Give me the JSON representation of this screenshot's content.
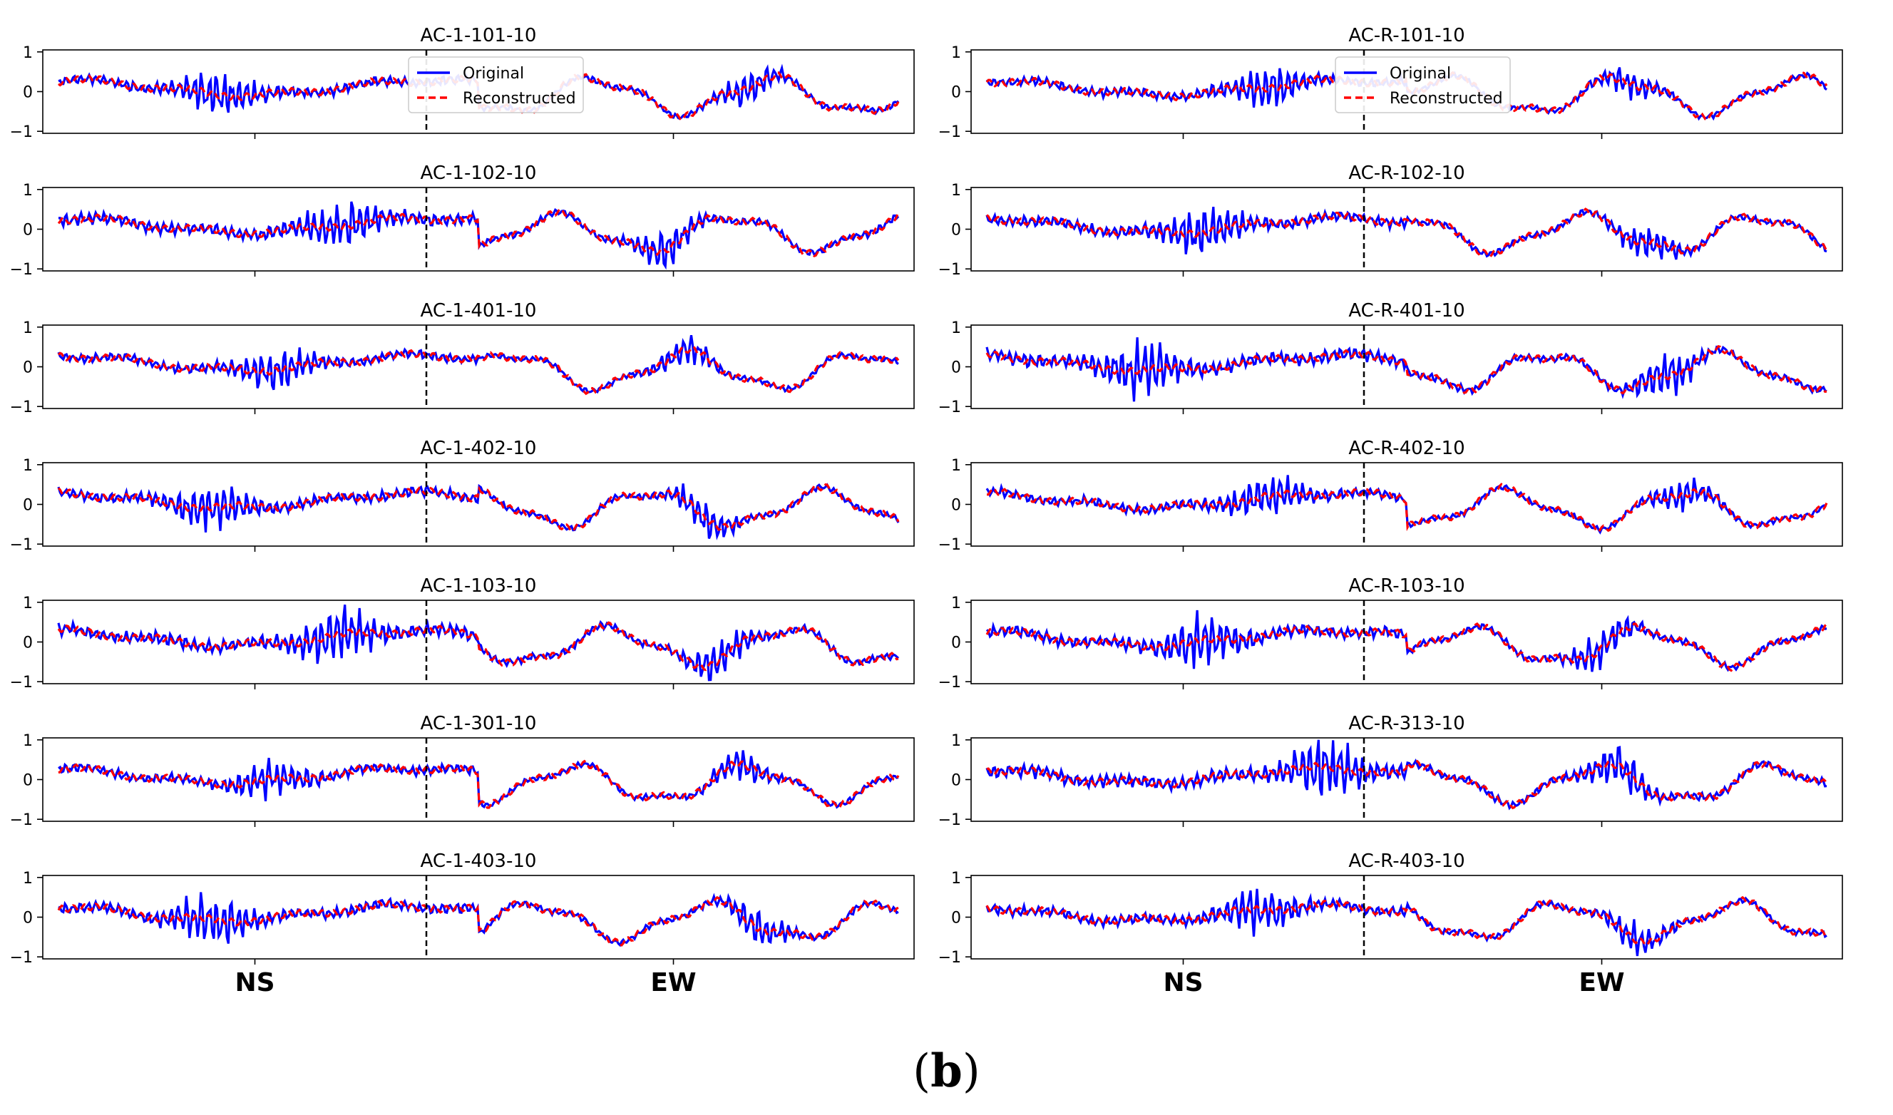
{
  "chart_data": {
    "type": "line",
    "yticks": [
      1,
      0,
      -1
    ],
    "ylim": [
      -1.05,
      1.05
    ],
    "x_groups": [
      "NS",
      "EW"
    ],
    "legend": {
      "series": [
        {
          "name": "Original",
          "color": "#0000ff",
          "style": "solid"
        },
        {
          "name": "Reconstructed",
          "color": "#ff0000",
          "style": "dashed"
        }
      ],
      "placement": "top-center"
    },
    "columns": [
      {
        "x_group_labels": [
          "NS",
          "EW"
        ],
        "panels": [
          {
            "title": "AC-1-101-10"
          },
          {
            "title": "AC-1-102-10"
          },
          {
            "title": "AC-1-401-10"
          },
          {
            "title": "AC-1-402-10"
          },
          {
            "title": "AC-1-103-10"
          },
          {
            "title": "AC-1-301-10"
          },
          {
            "title": "AC-1-403-10"
          }
        ]
      },
      {
        "x_group_labels": [
          "NS",
          "EW"
        ],
        "panels": [
          {
            "title": "AC-R-101-10"
          },
          {
            "title": "AC-R-102-10"
          },
          {
            "title": "AC-R-401-10"
          },
          {
            "title": "AC-R-402-10"
          },
          {
            "title": "AC-R-103-10"
          },
          {
            "title": "AC-R-313-10"
          },
          {
            "title": "AC-R-403-10"
          }
        ]
      }
    ]
  },
  "colors": {
    "original": "#0000ff",
    "reconstructed": "#ff0000",
    "divider": "#000000"
  },
  "caption": {
    "open": "(",
    "label": "b",
    "close": ")"
  }
}
